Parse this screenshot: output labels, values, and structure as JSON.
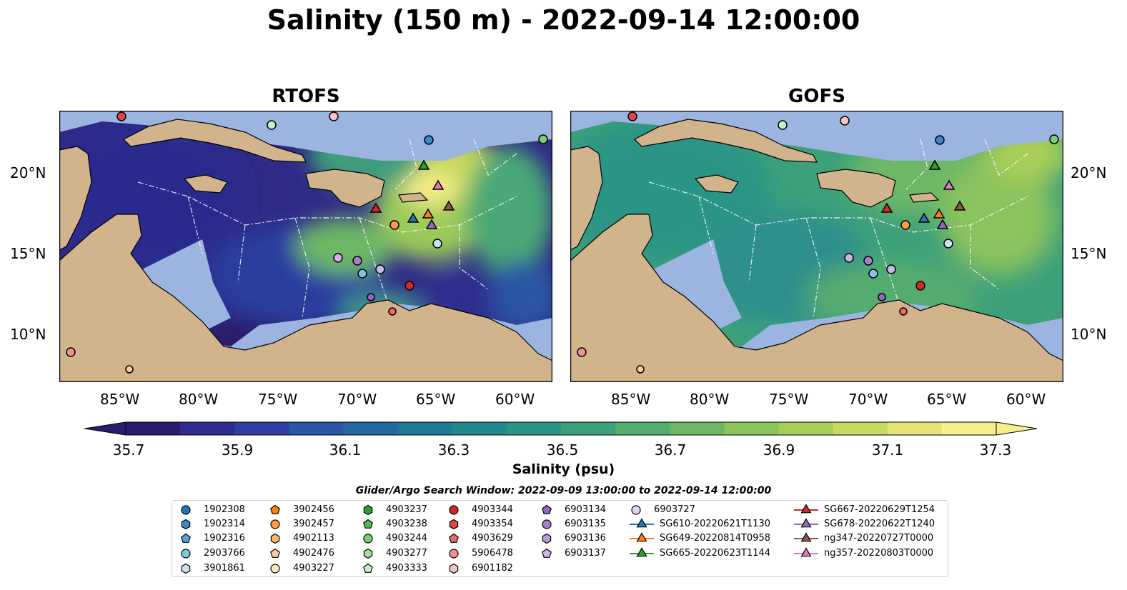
{
  "title": "Salinity (150 m) - 2022-09-14 12:00:00",
  "panels": [
    {
      "title": "RTOFS",
      "variant": "rtofs"
    },
    {
      "title": "GOFS",
      "variant": "gofs"
    }
  ],
  "lon_ticks": [
    "85°W",
    "80°W",
    "75°W",
    "70°W",
    "65°W",
    "60°W"
  ],
  "lat_ticks": [
    "20°N",
    "15°N",
    "10°N"
  ],
  "colorbar": {
    "label": "Salinity (psu)",
    "min": 35.7,
    "max": 37.3,
    "ticks": [
      "35.7",
      "35.9",
      "36.1",
      "36.3",
      "36.5",
      "36.7",
      "36.9",
      "37.1",
      "37.3"
    ],
    "colors": [
      "#2b1c6b",
      "#2e2d8f",
      "#2f3ea0",
      "#2a55a4",
      "#23699d",
      "#1f7a97",
      "#21898e",
      "#2b9585",
      "#3da07a",
      "#55ac6f",
      "#6db766",
      "#8bc35d",
      "#a9ce58",
      "#c7d960",
      "#e3e473",
      "#f6ef8c"
    ]
  },
  "legend": {
    "title": "Glider/Argo Search Window: 2022-09-09 13:00:00 to 2022-09-14 12:00:00",
    "columns": [
      [
        {
          "label": "1902308",
          "marker": "circle",
          "color": "#1f77b4"
        },
        {
          "label": "1902314",
          "marker": "hexagon",
          "color": "#3a89c9"
        },
        {
          "label": "1902316",
          "marker": "pentagon",
          "color": "#5aa0d6"
        },
        {
          "label": "2903766",
          "marker": "circle",
          "color": "#86c0e6"
        },
        {
          "label": "3901861",
          "marker": "hexagon",
          "color": "#c6e2f5"
        }
      ],
      [
        {
          "label": "3902456",
          "marker": "pentagon",
          "color": "#ff7f0e"
        },
        {
          "label": "3902457",
          "marker": "circle",
          "color": "#ff9a45"
        },
        {
          "label": "4902113",
          "marker": "hexagon",
          "color": "#ffb36f"
        },
        {
          "label": "4902476",
          "marker": "pentagon",
          "color": "#ffc896"
        },
        {
          "label": "4903227",
          "marker": "circle",
          "color": "#ffe2c2"
        }
      ],
      [
        {
          "label": "4903237",
          "marker": "hexagon",
          "color": "#2ca02c"
        },
        {
          "label": "4903238",
          "marker": "pentagon",
          "color": "#4cbb4c"
        },
        {
          "label": "4903244",
          "marker": "circle",
          "color": "#73d073"
        },
        {
          "label": "4903277",
          "marker": "hexagon",
          "color": "#9be09b"
        },
        {
          "label": "4903333",
          "marker": "pentagon",
          "color": "#c8f0c8"
        }
      ],
      [
        {
          "label": "4903344",
          "marker": "circle",
          "color": "#d62728"
        },
        {
          "label": "4903354",
          "marker": "hexagon",
          "color": "#e04546"
        },
        {
          "label": "4903629",
          "marker": "pentagon",
          "color": "#e86a6a"
        },
        {
          "label": "5906478",
          "marker": "circle",
          "color": "#f09090"
        },
        {
          "label": "6901182",
          "marker": "hexagon",
          "color": "#f8c4c4"
        }
      ],
      [
        {
          "label": "6903134",
          "marker": "pentagon",
          "color": "#9467bd"
        },
        {
          "label": "6903135",
          "marker": "circle",
          "color": "#a67fcc"
        },
        {
          "label": "6903136",
          "marker": "hexagon",
          "color": "#b998da"
        },
        {
          "label": "6903137",
          "marker": "pentagon",
          "color": "#cdb4e6"
        }
      ],
      [
        {
          "label": "6903727",
          "marker": "circle",
          "color": "#e6d4f5"
        },
        {
          "label": "SG610-20220621T1130",
          "marker": "triangle",
          "color": "#1f77b4",
          "line": true
        },
        {
          "label": "SG649-20220814T0958",
          "marker": "triangle",
          "color": "#ff7f0e",
          "line": true
        },
        {
          "label": "SG665-20220623T1144",
          "marker": "triangle",
          "color": "#2ca02c",
          "line": true
        }
      ],
      [
        {
          "label": "SG667-20220629T1254",
          "marker": "triangle",
          "color": "#d62728",
          "line": true
        },
        {
          "label": "SG678-20220622T1240",
          "marker": "triangle",
          "color": "#9467bd",
          "line": true
        },
        {
          "label": "ng347-20220727T0000",
          "marker": "triangle",
          "color": "#8c564b",
          "line": true
        },
        {
          "label": "ng357-20220803T0000",
          "marker": "triangle",
          "color": "#e377c2",
          "line": true
        }
      ]
    ]
  },
  "colors": {
    "land": "#d2b48c",
    "shelf": "#9bb5e0"
  }
}
